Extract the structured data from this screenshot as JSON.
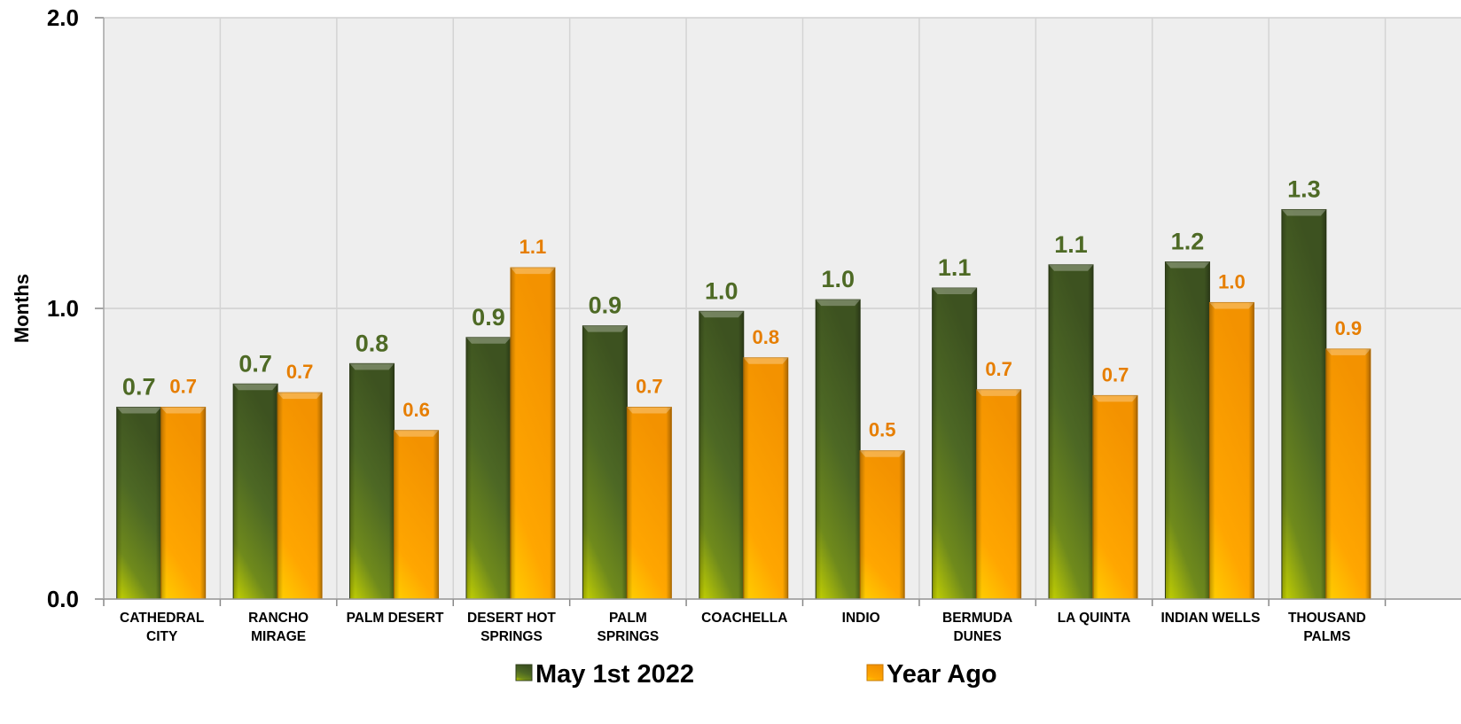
{
  "chart_data": {
    "type": "bar",
    "title": "",
    "xlabel": "",
    "ylabel": "Months",
    "ylim": [
      0,
      2
    ],
    "yticks": [
      "0.0",
      "1.0",
      "2.0"
    ],
    "grid": true,
    "legend_position": "bottom",
    "categories": [
      [
        "CATHEDRAL",
        "CITY"
      ],
      [
        "RANCHO",
        "MIRAGE"
      ],
      [
        "PALM DESERT"
      ],
      [
        "DESERT HOT",
        "SPRINGS"
      ],
      [
        "PALM",
        "SPRINGS"
      ],
      [
        "COACHELLA"
      ],
      [
        "INDIO"
      ],
      [
        "BERMUDA",
        "DUNES"
      ],
      [
        "LA QUINTA"
      ],
      [
        "INDIAN WELLS"
      ],
      [
        "THOUSAND",
        "PALMS"
      ]
    ],
    "series": [
      {
        "name": "May 1st  2022",
        "color": "#4e6a25",
        "values": [
          0.66,
          0.74,
          0.81,
          0.9,
          0.94,
          0.99,
          1.03,
          1.07,
          1.15,
          1.16,
          1.34
        ],
        "labels": [
          "0.7",
          "0.7",
          "0.8",
          "0.9",
          "0.9",
          "1.0",
          "1.0",
          "1.1",
          "1.1",
          "1.2",
          "1.3"
        ],
        "label_color": "#4e6a25"
      },
      {
        "name": "Year Ago",
        "color": "#f4a000",
        "values": [
          0.66,
          0.71,
          0.58,
          1.14,
          0.66,
          0.83,
          0.51,
          0.72,
          0.7,
          1.02,
          0.86
        ],
        "labels": [
          "0.7",
          "0.7",
          "0.6",
          "1.1",
          "0.7",
          "0.8",
          "0.5",
          "0.7",
          "0.7",
          "1.0",
          "0.9"
        ],
        "label_color": "#e67e00"
      }
    ]
  }
}
